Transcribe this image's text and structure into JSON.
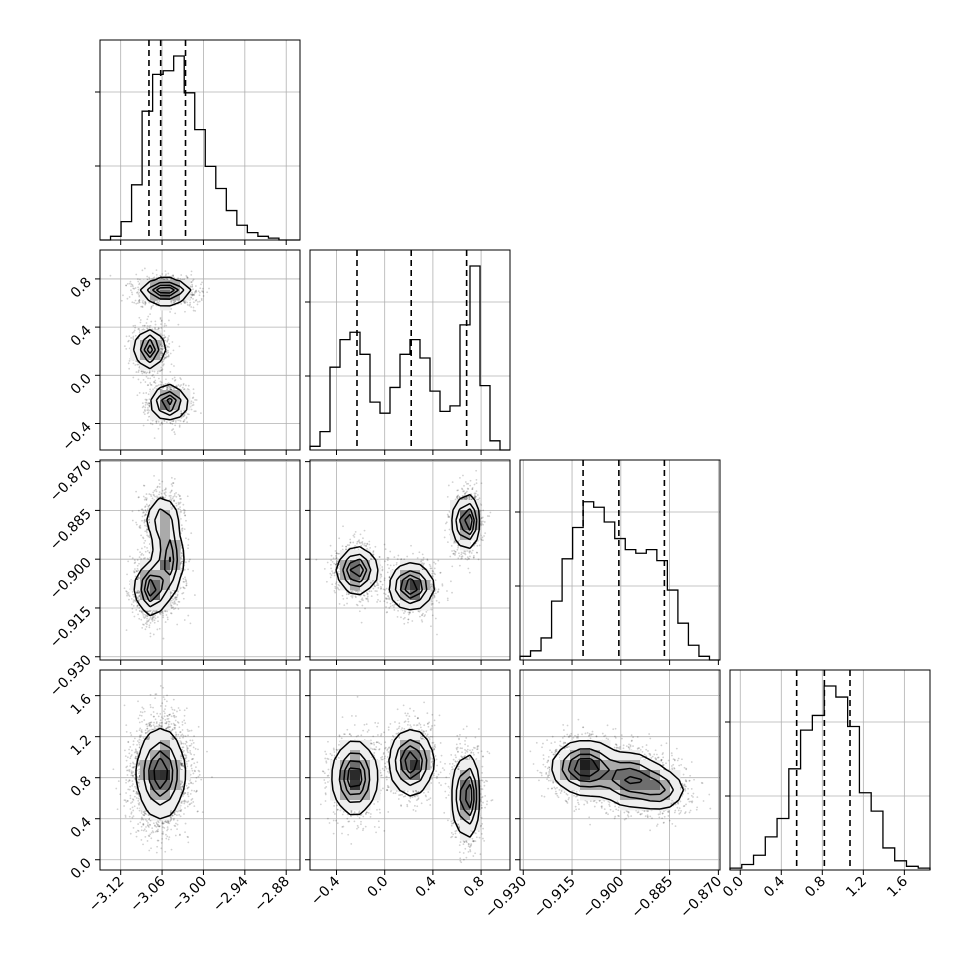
{
  "chart_data": {
    "type": "corner",
    "parameters": [
      {
        "range": [
          -3.15,
          -2.86
        ],
        "ticks": [
          -3.12,
          -3.06,
          -3.0,
          -2.94,
          -2.88
        ],
        "tick_labels": [
          "−3.12",
          "−3.06",
          "−3.00",
          "−2.94",
          "−2.88"
        ],
        "quantiles": [
          -3.079,
          -3.062,
          -3.026
        ]
      },
      {
        "range": [
          -0.62,
          1.04
        ],
        "ticks": [
          -0.4,
          0.0,
          0.4,
          0.8
        ],
        "tick_labels": [
          "−0.4",
          "0.0",
          "0.4",
          "0.8"
        ],
        "quantiles": [
          -0.23,
          0.22,
          0.68
        ]
      },
      {
        "range": [
          -0.931,
          -0.8695
        ],
        "ticks": [
          -0.93,
          -0.915,
          -0.9,
          -0.885,
          -0.87
        ],
        "tick_labels": [
          "−0.930",
          "−0.915",
          "−0.900",
          "−0.885",
          "−0.870"
        ],
        "quantiles": [
          -0.9116,
          -0.9006,
          -0.8866
        ]
      },
      {
        "range": [
          -0.1,
          1.85
        ],
        "ticks": [
          0.0,
          0.4,
          0.8,
          1.2,
          1.6
        ],
        "tick_labels": [
          "0.0",
          "0.4",
          "0.8",
          "1.2",
          "1.6"
        ],
        "quantiles": [
          0.55,
          0.82,
          1.07
        ]
      }
    ],
    "histograms": [
      [
        0.0,
        0.02,
        0.1,
        0.3,
        0.7,
        0.9,
        0.92,
        1.0,
        0.8,
        0.6,
        0.4,
        0.28,
        0.16,
        0.08,
        0.04,
        0.02,
        0.01,
        0.0,
        0.0
      ],
      [
        0.02,
        0.1,
        0.45,
        0.6,
        0.64,
        0.52,
        0.26,
        0.2,
        0.34,
        0.52,
        0.6,
        0.5,
        0.32,
        0.21,
        0.24,
        0.68,
        1.0,
        0.35,
        0.05,
        0.0
      ],
      [
        0.02,
        0.05,
        0.12,
        0.32,
        0.55,
        0.72,
        0.86,
        0.83,
        0.75,
        0.66,
        0.6,
        0.58,
        0.6,
        0.54,
        0.38,
        0.2,
        0.08,
        0.02,
        0.0
      ],
      [
        0.01,
        0.03,
        0.08,
        0.18,
        0.28,
        0.55,
        0.76,
        0.84,
        1.0,
        0.94,
        0.78,
        0.42,
        0.32,
        0.12,
        0.05,
        0.02,
        0.01
      ]
    ],
    "blobs": {
      "0_1": [
        {
          "cx": -3.055,
          "cy": 0.7,
          "sx": 0.018,
          "sy": 0.05,
          "w": 1.0
        },
        {
          "cx": -3.078,
          "cy": 0.22,
          "sx": 0.01,
          "sy": 0.08,
          "w": 0.9
        },
        {
          "cx": -3.05,
          "cy": -0.23,
          "sx": 0.013,
          "sy": 0.07,
          "w": 0.9
        }
      ],
      "0_2": [
        {
          "cx": -3.075,
          "cy": -0.909,
          "sx": 0.011,
          "sy": 0.004,
          "w": 1.0
        },
        {
          "cx": -3.05,
          "cy": -0.9,
          "sx": 0.01,
          "sy": 0.006,
          "w": 0.8
        },
        {
          "cx": -3.06,
          "cy": -0.888,
          "sx": 0.012,
          "sy": 0.004,
          "w": 0.55
        }
      ],
      "0_3": [
        {
          "cx": -3.062,
          "cy": 0.84,
          "sx": 0.017,
          "sy": 0.22,
          "w": 1.0
        }
      ],
      "1_2": [
        {
          "cx": -0.23,
          "cy": -0.9035,
          "sx": 0.08,
          "sy": 0.0035,
          "w": 0.9
        },
        {
          "cx": 0.22,
          "cy": -0.9085,
          "sx": 0.09,
          "sy": 0.0035,
          "w": 0.9
        },
        {
          "cx": 0.68,
          "cy": -0.8885,
          "sx": 0.05,
          "sy": 0.004,
          "w": 1.0
        }
      ],
      "1_3": [
        {
          "cx": -0.25,
          "cy": 0.8,
          "sx": 0.09,
          "sy": 0.18,
          "w": 0.9
        },
        {
          "cx": 0.22,
          "cy": 0.95,
          "sx": 0.09,
          "sy": 0.16,
          "w": 0.9
        },
        {
          "cx": 0.68,
          "cy": 0.62,
          "sx": 0.05,
          "sy": 0.2,
          "w": 1.0
        }
      ],
      "2_3": [
        {
          "cx": -0.911,
          "cy": 0.9,
          "sx": 0.005,
          "sy": 0.13,
          "w": 1.0
        },
        {
          "cx": -0.897,
          "cy": 0.78,
          "sx": 0.005,
          "sy": 0.13,
          "w": 0.8
        },
        {
          "cx": -0.888,
          "cy": 0.68,
          "sx": 0.004,
          "sy": 0.1,
          "w": 0.6
        }
      ]
    },
    "grid": true,
    "legend": "none"
  }
}
